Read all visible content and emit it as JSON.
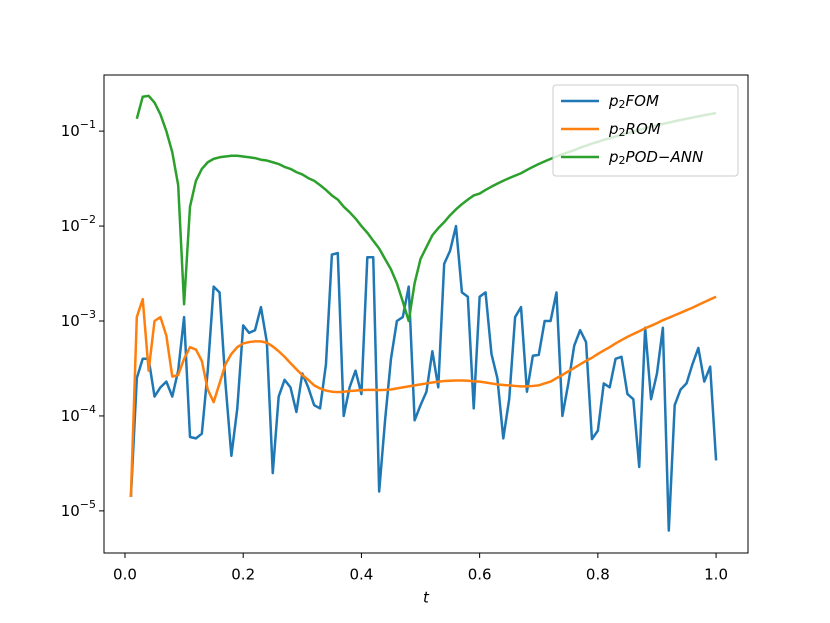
{
  "chart_data": {
    "type": "line",
    "xlabel": "t",
    "log_y": true,
    "legend": "upper right",
    "xlim": [
      -0.0355,
      1.054
    ],
    "ylim": [
      3.6e-06,
      0.39
    ],
    "xticks": [
      {
        "value": 0,
        "label": "0.0"
      },
      0.2,
      0.4,
      0.6,
      0.8,
      {
        "value": 1,
        "label": "1.0"
      }
    ],
    "yticks": [
      {
        "value": 1e-05,
        "label": "10−5"
      },
      {
        "value": 0.0001,
        "label": "10−4"
      },
      {
        "value": 0.001,
        "label": "10−3"
      },
      {
        "value": 0.01,
        "label": "10−2"
      },
      {
        "value": 0.1,
        "label": "10−1"
      }
    ],
    "x": [
      0.01,
      0.02,
      0.03,
      0.04,
      0.05,
      0.06,
      0.07,
      0.08,
      0.09,
      0.1,
      0.11,
      0.12,
      0.13,
      0.14,
      0.15,
      0.16,
      0.17,
      0.18,
      0.19,
      0.2,
      0.21,
      0.22,
      0.23,
      0.24,
      0.25,
      0.26,
      0.27,
      0.28,
      0.29,
      0.3,
      0.31,
      0.32,
      0.33,
      0.34,
      0.35,
      0.36,
      0.37,
      0.38,
      0.39,
      0.4,
      0.41,
      0.42,
      0.43,
      0.44,
      0.45,
      0.46,
      0.47,
      0.48,
      0.49,
      0.5,
      0.51,
      0.52,
      0.53,
      0.54,
      0.55,
      0.56,
      0.57,
      0.58,
      0.59,
      0.6,
      0.61,
      0.62,
      0.63,
      0.64,
      0.65,
      0.66,
      0.67,
      0.68,
      0.69,
      0.7,
      0.71,
      0.72,
      0.73,
      0.74,
      0.75,
      0.76,
      0.77,
      0.78,
      0.79,
      0.8,
      0.81,
      0.82,
      0.83,
      0.84,
      0.85,
      0.86,
      0.87,
      0.88,
      0.89,
      0.9,
      0.91,
      0.92,
      0.93,
      0.94,
      0.95,
      0.96,
      0.97,
      0.98,
      0.99,
      1.0
    ],
    "series": [
      {
        "name": "p2FOM",
        "color": "#1f77b4",
        "values": [
          1.4e-05,
          0.00025,
          0.0004,
          0.0004,
          0.00016,
          0.0002,
          0.00023,
          0.00016,
          0.0003,
          0.0011,
          6e-05,
          5.8e-05,
          6.5e-05,
          0.0003,
          0.0023,
          0.002,
          0.00022,
          3.8e-05,
          0.00012,
          0.0009,
          0.00075,
          0.0008,
          0.0014,
          0.0006,
          2.5e-05,
          0.00016,
          0.00024,
          0.0002,
          0.00011,
          0.00028,
          0.0002,
          0.00013,
          0.00012,
          0.00035,
          0.005,
          0.0052,
          0.0001,
          0.0002,
          0.0003,
          0.00017,
          0.0047,
          0.0047,
          1.6e-05,
          9e-05,
          0.0004,
          0.001,
          0.0011,
          0.0023,
          9e-05,
          0.00013,
          0.00018,
          0.00048,
          0.0002,
          0.004,
          0.0055,
          0.01,
          0.002,
          0.0018,
          0.00012,
          0.0018,
          0.002,
          0.00045,
          0.00025,
          5.8e-05,
          0.00015,
          0.0011,
          0.0014,
          0.00018,
          0.00043,
          0.00044,
          0.001,
          0.001,
          0.002,
          0.0001,
          0.00022,
          0.00055,
          0.0008,
          0.0006,
          5.7e-05,
          7e-05,
          0.00022,
          0.0002,
          0.0004,
          0.00042,
          0.00017,
          0.00015,
          2.9e-05,
          0.00085,
          0.00015,
          0.00028,
          0.00085,
          6.2e-06,
          0.00013,
          0.00019,
          0.00022,
          0.00035,
          0.00052,
          0.00023,
          0.00033,
          3.4e-05
        ]
      },
      {
        "name": "p2ROM",
        "color": "#ff7f0e",
        "values": [
          1.4e-05,
          0.0011,
          0.0017,
          0.0003,
          0.001,
          0.0011,
          0.0007,
          0.00026,
          0.00027,
          0.0004,
          0.00053,
          0.0005,
          0.00038,
          0.00019,
          0.00014,
          0.00022,
          0.00035,
          0.00045,
          0.00053,
          0.00058,
          0.0006,
          0.00061,
          0.00061,
          0.00059,
          0.00054,
          0.00048,
          0.00042,
          0.00036,
          0.00031,
          0.00027,
          0.00024,
          0.00021,
          0.000195,
          0.000185,
          0.00018,
          0.000178,
          0.00018,
          0.000183,
          0.000185,
          0.000187,
          0.000188,
          0.000188,
          0.000187,
          0.000188,
          0.00019,
          0.000195,
          0.0002,
          0.000205,
          0.00021,
          0.000215,
          0.00022,
          0.000225,
          0.00023,
          0.000233,
          0.000235,
          0.000236,
          0.000236,
          0.000235,
          0.000232,
          0.00023,
          0.000225,
          0.00022,
          0.000215,
          0.000212,
          0.00021,
          0.000207,
          0.000205,
          0.000205,
          0.000207,
          0.00021,
          0.00022,
          0.00023,
          0.00025,
          0.00027,
          0.000295,
          0.00032,
          0.00035,
          0.00038,
          0.00041,
          0.00045,
          0.00049,
          0.00053,
          0.00058,
          0.00063,
          0.00068,
          0.00073,
          0.00078,
          0.00084,
          0.00089,
          0.00095,
          0.00102,
          0.00108,
          0.00115,
          0.00122,
          0.0013,
          0.00138,
          0.00148,
          0.00158,
          0.00169,
          0.0018
        ]
      },
      {
        "name": "p2POD−ANN",
        "color": "#2ca02c",
        "values": [
          null,
          0.135,
          0.23,
          0.235,
          0.2,
          0.15,
          0.1,
          0.06,
          0.027,
          0.0015,
          0.016,
          0.03,
          0.04,
          0.047,
          0.051,
          0.053,
          0.054,
          0.055,
          0.055,
          0.054,
          0.053,
          0.052,
          0.05,
          0.049,
          0.047,
          0.045,
          0.042,
          0.04,
          0.037,
          0.035,
          0.032,
          0.03,
          0.027,
          0.024,
          0.021,
          0.019,
          0.016,
          0.014,
          0.012,
          0.01,
          0.0085,
          0.007,
          0.0058,
          0.0045,
          0.0035,
          0.0025,
          0.0016,
          0.001,
          0.0025,
          0.0045,
          0.006,
          0.008,
          0.0095,
          0.011,
          0.013,
          0.015,
          0.017,
          0.019,
          0.021,
          0.022,
          0.024,
          0.026,
          0.028,
          0.03,
          0.032,
          0.034,
          0.036,
          0.039,
          0.042,
          0.045,
          0.048,
          0.051,
          0.054,
          0.057,
          0.06,
          0.063,
          0.067,
          0.07,
          0.074,
          0.077,
          0.081,
          0.084,
          0.088,
          0.091,
          0.095,
          0.099,
          0.103,
          0.107,
          0.111,
          0.115,
          0.119,
          0.123,
          0.127,
          0.131,
          0.135,
          0.139,
          0.143,
          0.147,
          0.151,
          0.155
        ]
      }
    ]
  }
}
